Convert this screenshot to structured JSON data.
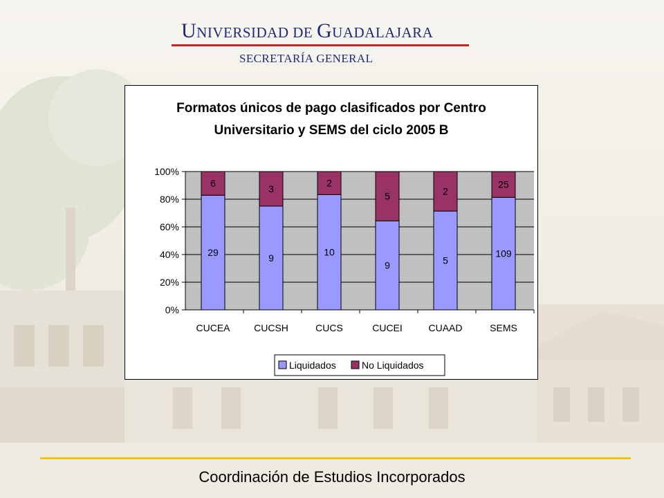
{
  "header": {
    "university_initial_1": "U",
    "university_rest_1": "niversidad de ",
    "university_initial_2": "G",
    "university_rest_2": "uadalajara",
    "subtitle": "SECRETARÍA GENERAL"
  },
  "footer": {
    "text": "Coordinación de Estudios Incorporados"
  },
  "colors": {
    "liquidados": "#9999ff",
    "no_liquidados": "#993366",
    "plot_bg": "#c0c0c0",
    "title_blue": "#1e2a78",
    "red_rule": "#d21e1e",
    "gold_rule": "#f2c416"
  },
  "chart_data": {
    "type": "bar",
    "stacked": "percent",
    "title_line1": "Formatos únicos de pago clasificados por Centro",
    "title_line2": "Universitario y SEMS del ciclo 2005 B",
    "categories": [
      "CUCEA",
      "CUCSH",
      "CUCS",
      "CUCEI",
      "CUAAD",
      "SEMS"
    ],
    "series": [
      {
        "name": "Liquidados",
        "values": [
          29,
          9,
          10,
          9,
          5,
          109
        ]
      },
      {
        "name": "No Liquidados",
        "values": [
          6,
          3,
          2,
          5,
          2,
          25
        ]
      }
    ],
    "y_ticks": [
      "0%",
      "20%",
      "40%",
      "60%",
      "80%",
      "100%"
    ],
    "ylim": [
      0,
      100
    ],
    "grid": true,
    "legend_position": "bottom"
  }
}
